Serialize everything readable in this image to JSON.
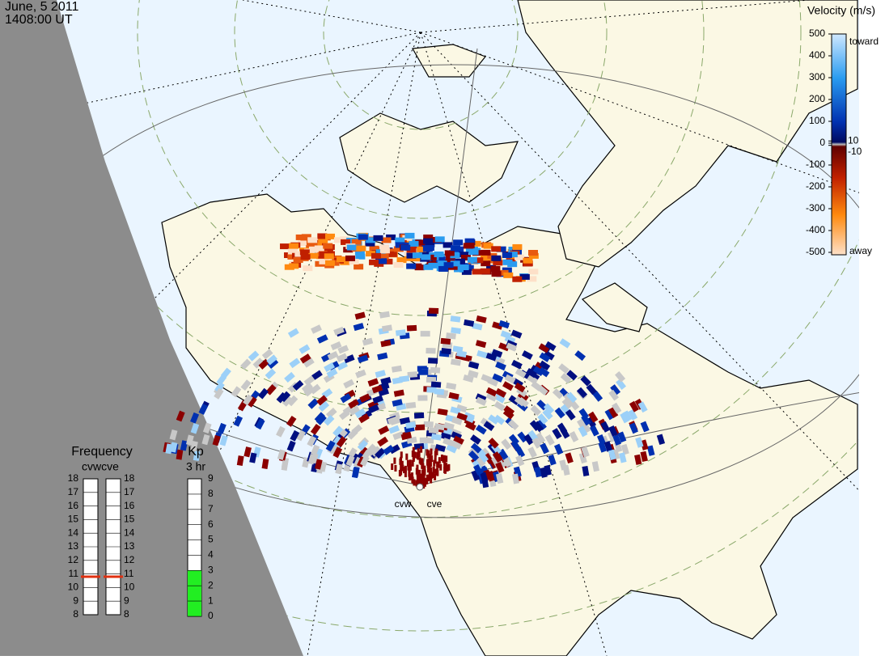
{
  "header": {
    "date": "June, 5 2011",
    "time": "1408:00 UT"
  },
  "velocity_scale": {
    "title": "Velocity (m/s)",
    "toward": "toward",
    "away": "away",
    "ticks": [
      500,
      400,
      300,
      200,
      100,
      10,
      0,
      -10,
      -100,
      -200,
      -300,
      -400,
      -500
    ]
  },
  "frequency": {
    "title": "Frequency",
    "stations": "cvwcve",
    "ticks": [
      18,
      17,
      16,
      15,
      14,
      13,
      12,
      11,
      10,
      9,
      8
    ],
    "cvw": 10.8,
    "cve": 10.8
  },
  "kp": {
    "title": "Kp",
    "period": "3 hr",
    "ticks": [
      9,
      8,
      7,
      6,
      5,
      4,
      3,
      2,
      1,
      0
    ],
    "value": 3
  },
  "radars": [
    {
      "label": "cvw"
    },
    {
      "label": "cve"
    }
  ]
}
